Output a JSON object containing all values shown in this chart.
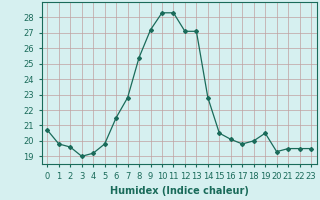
{
  "x": [
    0,
    1,
    2,
    3,
    4,
    5,
    6,
    7,
    8,
    9,
    10,
    11,
    12,
    13,
    14,
    15,
    16,
    17,
    18,
    19,
    20,
    21,
    22,
    23
  ],
  "y": [
    20.7,
    19.8,
    19.6,
    19.0,
    19.2,
    19.8,
    21.5,
    22.8,
    25.4,
    27.2,
    28.3,
    28.3,
    27.1,
    27.1,
    22.8,
    20.5,
    20.1,
    19.8,
    20.0,
    20.5,
    19.3,
    19.5,
    19.5,
    19.5
  ],
  "xlabel": "Humidex (Indice chaleur)",
  "xlim": [
    -0.5,
    23.5
  ],
  "ylim": [
    18.5,
    29.0
  ],
  "yticks": [
    19,
    20,
    21,
    22,
    23,
    24,
    25,
    26,
    27,
    28
  ],
  "xticks": [
    0,
    1,
    2,
    3,
    4,
    5,
    6,
    7,
    8,
    9,
    10,
    11,
    12,
    13,
    14,
    15,
    16,
    17,
    18,
    19,
    20,
    21,
    22,
    23
  ],
  "line_color": "#1a6b5a",
  "marker": "D",
  "marker_size": 2.0,
  "bg_color": "#d6f0f0",
  "grid_color": "#c0a0a0",
  "label_fontsize": 7,
  "tick_fontsize": 6
}
